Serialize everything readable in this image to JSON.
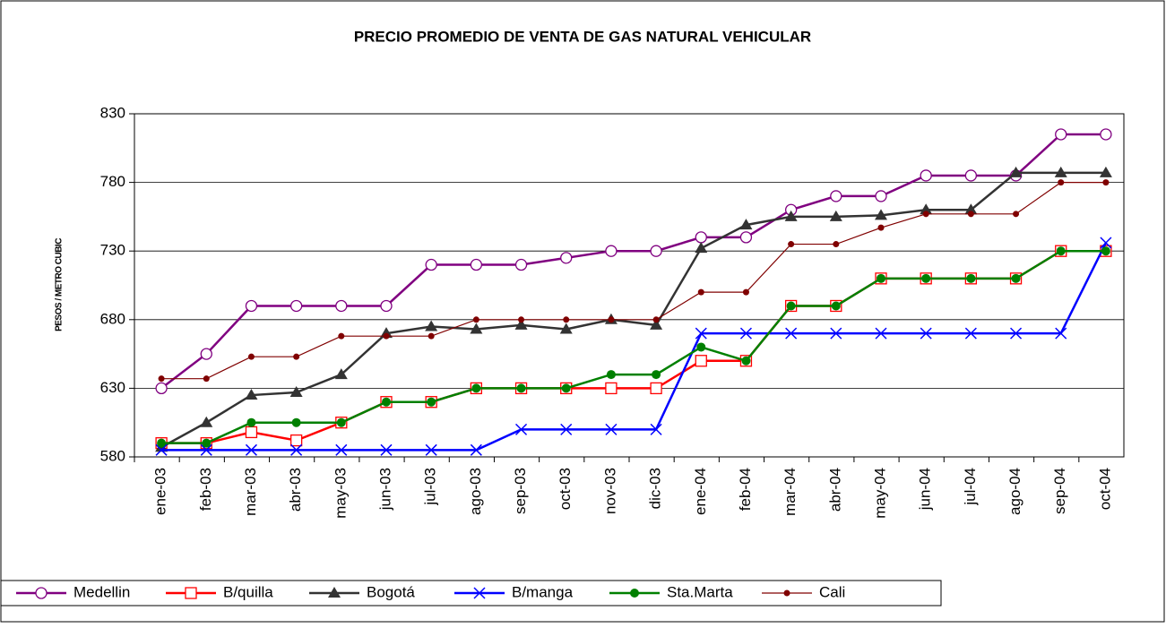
{
  "chart_data": {
    "type": "line",
    "title": "PRECIO PROMEDIO DE VENTA DE GAS NATURAL VEHICULAR",
    "y_label": "PESOS / METRO CUBIC",
    "categories": [
      "ene-03",
      "feb-03",
      "mar-03",
      "abr-03",
      "may-03",
      "jun-03",
      "jul-03",
      "ago-03",
      "sep-03",
      "oct-03",
      "nov-03",
      "dic-03",
      "ene-04",
      "feb-04",
      "mar-04",
      "abr-04",
      "may-04",
      "jun-04",
      "jul-04",
      "ago-04",
      "sep-04",
      "oct-04"
    ],
    "ylim": [
      580,
      830
    ],
    "yticks": [
      580,
      630,
      680,
      730,
      780,
      830
    ],
    "grid": true,
    "legend": "bottom",
    "series": [
      {
        "name": "Medellin",
        "color": "#800080",
        "marker": "open-circle",
        "values": [
          630,
          655,
          690,
          690,
          690,
          690,
          720,
          720,
          720,
          725,
          730,
          730,
          740,
          740,
          760,
          770,
          770,
          785,
          785,
          785,
          815,
          815
        ]
      },
      {
        "name": "B/quilla",
        "color": "#ff0000",
        "marker": "open-square",
        "values": [
          590,
          590,
          598,
          592,
          605,
          620,
          620,
          630,
          630,
          630,
          630,
          630,
          650,
          650,
          690,
          690,
          710,
          710,
          710,
          710,
          730,
          730
        ]
      },
      {
        "name": "Bogotá",
        "color": "#333333",
        "marker": "triangle",
        "values": [
          587,
          605,
          625,
          627,
          640,
          670,
          675,
          673,
          676,
          673,
          680,
          676,
          732,
          749,
          755,
          755,
          756,
          760,
          760,
          787,
          787,
          787
        ]
      },
      {
        "name": "B/manga",
        "color": "#0000ff",
        "marker": "cross",
        "values": [
          585,
          585,
          585,
          585,
          585,
          585,
          585,
          585,
          600,
          600,
          600,
          600,
          670,
          670,
          670,
          670,
          670,
          670,
          670,
          670,
          670,
          736
        ]
      },
      {
        "name": "Sta.Marta",
        "color": "#008000",
        "marker": "dot",
        "values": [
          590,
          590,
          605,
          605,
          605,
          620,
          620,
          630,
          630,
          630,
          640,
          640,
          660,
          650,
          690,
          690,
          710,
          710,
          710,
          710,
          730,
          730
        ]
      },
      {
        "name": "Cali",
        "color": "#800000",
        "marker": "small-dot",
        "values": [
          637,
          637,
          653,
          653,
          668,
          668,
          668,
          680,
          680,
          680,
          680,
          680,
          700,
          700,
          735,
          735,
          747,
          757,
          757,
          757,
          780,
          780
        ]
      }
    ]
  }
}
